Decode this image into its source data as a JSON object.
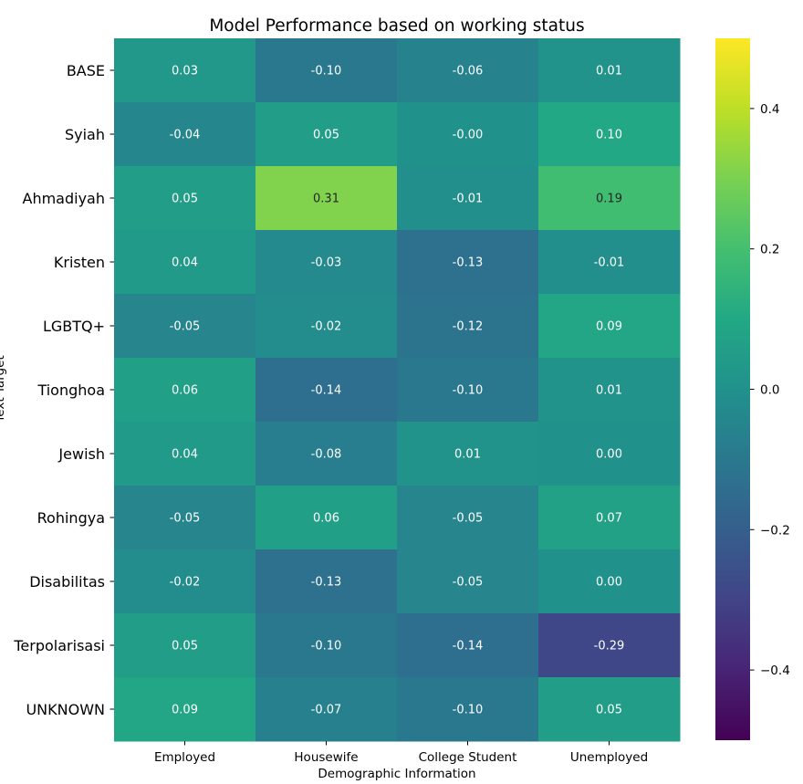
{
  "chart_data": {
    "type": "heatmap",
    "title": "Model Performance based on working status",
    "xlabel": "Demographic Information",
    "ylabel": "Text Target",
    "x_categories": [
      "Employed",
      "Housewife",
      "College Student",
      "Unemployed"
    ],
    "y_categories": [
      "BASE",
      "Syiah",
      "Ahmadiyah",
      "Kristen",
      "LGBTQ+",
      "Tionghoa",
      "Jewish",
      "Rohingya",
      "Disabilitas",
      "Terpolarisasi",
      "UNKNOWN"
    ],
    "values": [
      [
        0.03,
        -0.1,
        -0.06,
        0.01
      ],
      [
        -0.04,
        0.05,
        -0.0,
        0.1
      ],
      [
        0.05,
        0.31,
        -0.01,
        0.19
      ],
      [
        0.04,
        -0.03,
        -0.13,
        -0.01
      ],
      [
        -0.05,
        -0.02,
        -0.12,
        0.09
      ],
      [
        0.06,
        -0.14,
        -0.1,
        0.01
      ],
      [
        0.04,
        -0.08,
        0.01,
        0.0
      ],
      [
        -0.05,
        0.06,
        -0.05,
        0.07
      ],
      [
        -0.02,
        -0.13,
        -0.05,
        0.0
      ],
      [
        0.05,
        -0.1,
        -0.14,
        -0.29
      ],
      [
        0.09,
        -0.07,
        -0.1,
        0.05
      ]
    ],
    "value_labels": [
      [
        "0.03",
        "-0.10",
        "-0.06",
        "0.01"
      ],
      [
        "-0.04",
        "0.05",
        "-0.00",
        "0.10"
      ],
      [
        "0.05",
        "0.31",
        "-0.01",
        "0.19"
      ],
      [
        "0.04",
        "-0.03",
        "-0.13",
        "-0.01"
      ],
      [
        "-0.05",
        "-0.02",
        "-0.12",
        "0.09"
      ],
      [
        "0.06",
        "-0.14",
        "-0.10",
        "0.01"
      ],
      [
        "0.04",
        "-0.08",
        "0.01",
        "0.00"
      ],
      [
        "-0.05",
        "0.06",
        "-0.05",
        "0.07"
      ],
      [
        "-0.02",
        "-0.13",
        "-0.05",
        "0.00"
      ],
      [
        "0.05",
        "-0.10",
        "-0.14",
        "-0.29"
      ],
      [
        "0.09",
        "-0.07",
        "-0.10",
        "0.05"
      ]
    ],
    "colormap": "viridis",
    "vmin": -0.5,
    "vmax": 0.5,
    "colorbar_ticks": [
      0.4,
      0.2,
      0.0,
      -0.2,
      -0.4
    ],
    "colorbar_tick_labels": [
      "0.4",
      "0.2",
      "0.0",
      "−0.2",
      "−0.4"
    ],
    "grid": false,
    "colorbar_placement": "right"
  }
}
